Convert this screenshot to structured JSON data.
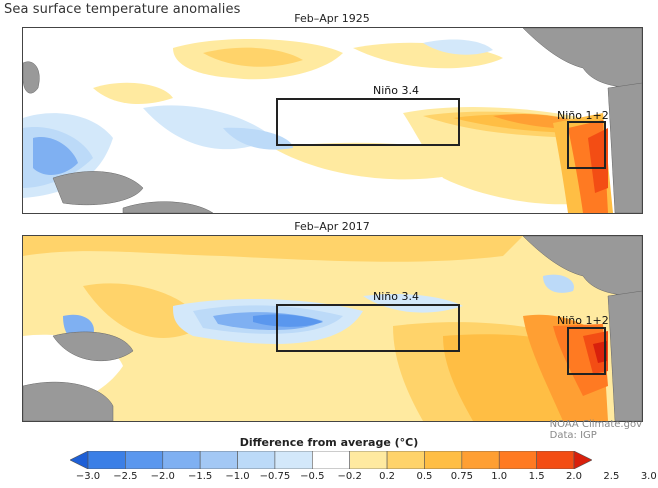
{
  "title": "Sea surface temperature anomalies",
  "panels": [
    {
      "label": "Feb–Apr 1925",
      "regions": [
        "Niño 3.4",
        "Niño 1+2"
      ]
    },
    {
      "label": "Feb–Apr 2017",
      "regions": [
        "Niño 3.4",
        "Niño 1+2"
      ]
    }
  ],
  "credits": {
    "line1": "NOAA Climate.gov",
    "line2": "Data: IGP"
  },
  "legend": {
    "title": "Difference from average (°C)",
    "ticks": [
      "−3.0",
      "−2.5",
      "−2.0",
      "−1.5",
      "−1.0",
      "−0.75",
      "−0.5",
      "−0.2",
      "0.2",
      "0.5",
      "0.75",
      "1.0",
      "1.5",
      "2.0",
      "2.5",
      "3.0"
    ],
    "colors": [
      "#1e5fd6",
      "#3b7fe6",
      "#5a97ee",
      "#7fb0f2",
      "#a3c8f5",
      "#bcdaf8",
      "#d3e8fa",
      "#ffffff",
      "#ffeaa0",
      "#ffd36a",
      "#ffbe44",
      "#ff9f33",
      "#ff7a22",
      "#f34d14",
      "#d8200c"
    ]
  }
}
